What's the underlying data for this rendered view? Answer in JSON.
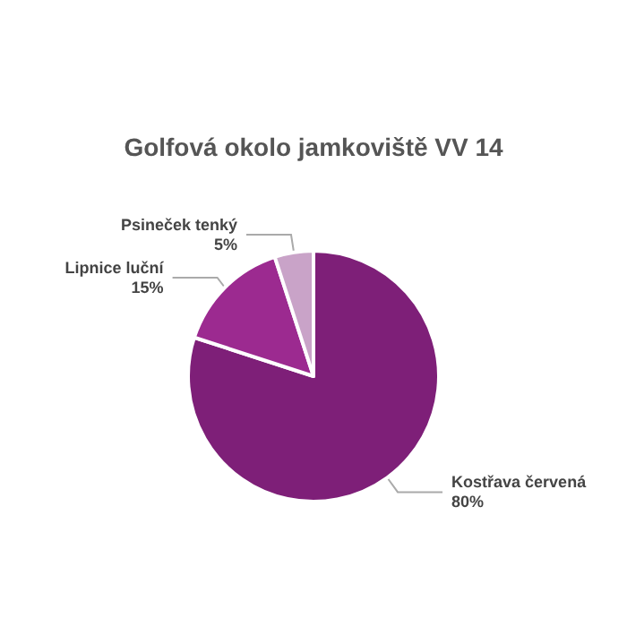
{
  "chart_data": {
    "type": "pie",
    "title": "Golfová okolo jamkoviště VV 14",
    "categories": [
      "Kostřava červená",
      "Lipnice luční",
      "Psineček tenký"
    ],
    "values": [
      80,
      15,
      5
    ],
    "colors": [
      "#7e1f78",
      "#9c2a90",
      "#c9a3c8"
    ],
    "value_labels": [
      "80%",
      "15%",
      "5%"
    ],
    "legend": false
  }
}
